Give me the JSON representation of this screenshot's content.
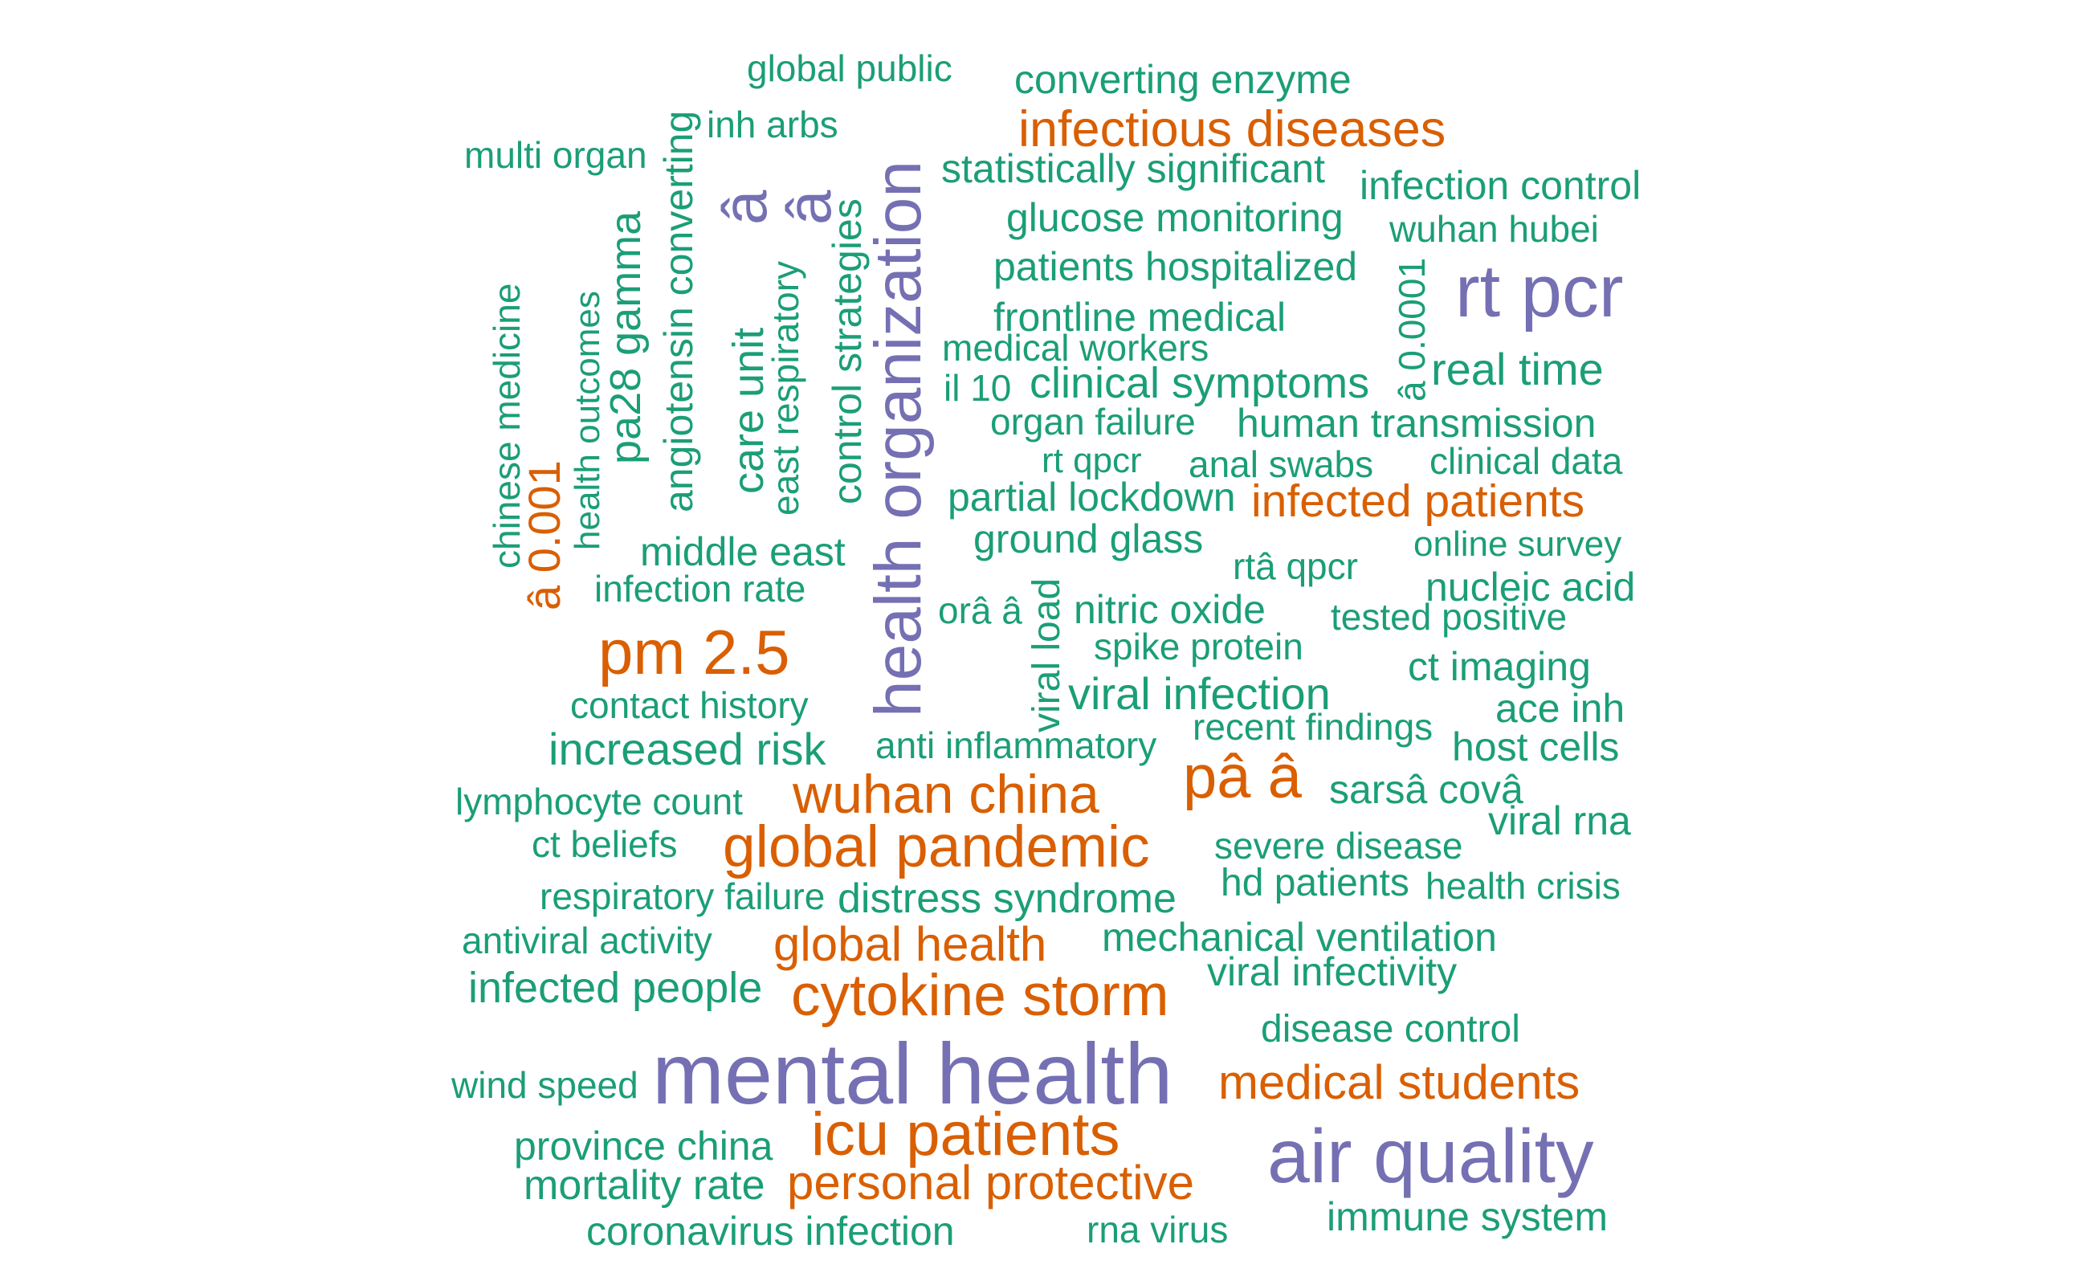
{
  "palette": {
    "green": "#1b9e77",
    "orange": "#d95f02",
    "purple": "#7570b3"
  },
  "words": [
    {
      "text": "global public",
      "color": "green"
    },
    {
      "text": "converting enzyme",
      "color": "green"
    },
    {
      "text": "inh arbs",
      "color": "green"
    },
    {
      "text": "infectious diseases",
      "color": "orange"
    },
    {
      "text": "multi organ",
      "color": "green"
    },
    {
      "text": "statistically significant",
      "color": "green"
    },
    {
      "text": "infection control",
      "color": "green"
    },
    {
      "text": "glucose monitoring",
      "color": "green"
    },
    {
      "text": "wuhan hubei",
      "color": "green"
    },
    {
      "text": "patients hospitalized",
      "color": "green"
    },
    {
      "text": "rt pcr",
      "color": "purple"
    },
    {
      "text": "frontline medical",
      "color": "green"
    },
    {
      "text": "medical workers",
      "color": "green"
    },
    {
      "text": "real time",
      "color": "green"
    },
    {
      "text": "il 10",
      "color": "green"
    },
    {
      "text": "clinical symptoms",
      "color": "green"
    },
    {
      "text": "organ failure",
      "color": "green"
    },
    {
      "text": "human transmission",
      "color": "green"
    },
    {
      "text": "rt qpcr",
      "color": "green"
    },
    {
      "text": "anal swabs",
      "color": "green"
    },
    {
      "text": "clinical data",
      "color": "green"
    },
    {
      "text": "partial lockdown",
      "color": "green"
    },
    {
      "text": "infected patients",
      "color": "orange"
    },
    {
      "text": "ground glass",
      "color": "green"
    },
    {
      "text": "online survey",
      "color": "green"
    },
    {
      "text": "middle east",
      "color": "green"
    },
    {
      "text": "rtâ qpcr",
      "color": "green"
    },
    {
      "text": "nucleic acid",
      "color": "green"
    },
    {
      "text": "infection rate",
      "color": "green"
    },
    {
      "text": "orâ â",
      "color": "green"
    },
    {
      "text": "nitric oxide",
      "color": "green"
    },
    {
      "text": "tested positive",
      "color": "green"
    },
    {
      "text": "pm 2.5",
      "color": "orange"
    },
    {
      "text": "spike protein",
      "color": "green"
    },
    {
      "text": "ct imaging",
      "color": "green"
    },
    {
      "text": "contact history",
      "color": "green"
    },
    {
      "text": "viral infection",
      "color": "green"
    },
    {
      "text": "ace inh",
      "color": "green"
    },
    {
      "text": "recent findings",
      "color": "green"
    },
    {
      "text": "increased risk",
      "color": "green"
    },
    {
      "text": "anti inflammatory",
      "color": "green"
    },
    {
      "text": "host cells",
      "color": "green"
    },
    {
      "text": "pâ â",
      "color": "orange"
    },
    {
      "text": "wuhan china",
      "color": "orange"
    },
    {
      "text": "lymphocyte count",
      "color": "green"
    },
    {
      "text": "sarsâ covâ",
      "color": "green"
    },
    {
      "text": "viral rna",
      "color": "green"
    },
    {
      "text": "ct beliefs",
      "color": "green"
    },
    {
      "text": "global pandemic",
      "color": "orange"
    },
    {
      "text": "severe disease",
      "color": "green"
    },
    {
      "text": "respiratory failure",
      "color": "green"
    },
    {
      "text": "distress syndrome",
      "color": "green"
    },
    {
      "text": "hd patients",
      "color": "green"
    },
    {
      "text": "health crisis",
      "color": "green"
    },
    {
      "text": "antiviral activity",
      "color": "green"
    },
    {
      "text": "global health",
      "color": "orange"
    },
    {
      "text": "mechanical ventilation",
      "color": "green"
    },
    {
      "text": "viral infectivity",
      "color": "green"
    },
    {
      "text": "infected people",
      "color": "green"
    },
    {
      "text": "cytokine storm",
      "color": "orange"
    },
    {
      "text": "disease control",
      "color": "green"
    },
    {
      "text": "wind speed",
      "color": "green"
    },
    {
      "text": "mental health",
      "color": "purple"
    },
    {
      "text": "medical students",
      "color": "orange"
    },
    {
      "text": "icu patients",
      "color": "orange"
    },
    {
      "text": "province china",
      "color": "green"
    },
    {
      "text": "air quality",
      "color": "purple"
    },
    {
      "text": "mortality rate",
      "color": "green"
    },
    {
      "text": "personal protective",
      "color": "orange"
    },
    {
      "text": "immune system",
      "color": "green"
    },
    {
      "text": "coronavirus infection",
      "color": "green"
    },
    {
      "text": "rna virus",
      "color": "green"
    },
    {
      "text": "chinese medicine",
      "color": "green"
    },
    {
      "text": "â 0.001",
      "color": "orange"
    },
    {
      "text": "health outcomes",
      "color": "green"
    },
    {
      "text": "pa28 gamma",
      "color": "green"
    },
    {
      "text": "angiotensin converting",
      "color": "green"
    },
    {
      "text": "â",
      "color": "purple"
    },
    {
      "text": "â",
      "color": "purple"
    },
    {
      "text": "care unit",
      "color": "green"
    },
    {
      "text": "east respiratory",
      "color": "green"
    },
    {
      "text": "control strategies",
      "color": "green"
    },
    {
      "text": "health organization",
      "color": "purple"
    },
    {
      "text": "viral load",
      "color": "green"
    },
    {
      "text": "â 0.0001",
      "color": "green"
    }
  ]
}
